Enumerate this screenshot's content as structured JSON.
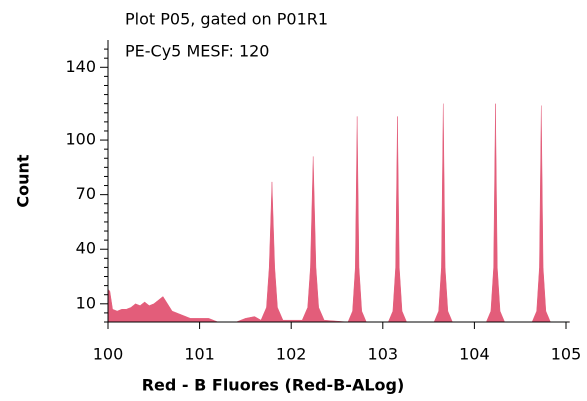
{
  "chart_data": {
    "type": "area",
    "title": "Plot P05, gated on P01R1",
    "subtitle": "PE-Cy5 MESF: 120",
    "x_label": "Red - B Fluores (Red-B-ALog)",
    "y_label": "Count",
    "color": "#e35d7a",
    "xlim": [
      0,
      5.04
    ],
    "ylim": [
      0,
      155
    ],
    "xticks": [
      {
        "value": 0,
        "label": "100"
      },
      {
        "value": 1,
        "label": "101"
      },
      {
        "value": 2,
        "label": "102"
      },
      {
        "value": 3,
        "label": "103"
      },
      {
        "value": 4,
        "label": "104"
      },
      {
        "value": 5,
        "label": "105"
      }
    ],
    "yticks": [
      10,
      40,
      70,
      100,
      140
    ],
    "yminorticks": [
      0,
      5,
      15,
      20,
      25,
      30,
      35,
      45,
      50,
      55,
      60,
      65,
      75,
      80,
      85,
      90,
      95,
      105,
      110,
      115,
      120,
      125,
      130,
      135,
      145,
      150
    ],
    "x": [
      0.0,
      0.02,
      0.05,
      0.1,
      0.15,
      0.2,
      0.25,
      0.3,
      0.35,
      0.4,
      0.45,
      0.5,
      0.55,
      0.6,
      0.65,
      0.7,
      0.8,
      0.9,
      1.0,
      1.1,
      1.2,
      1.4,
      1.5,
      1.6,
      1.67,
      1.73,
      1.76,
      1.79,
      1.82,
      1.85,
      1.91,
      2.12,
      2.18,
      2.21,
      2.24,
      2.27,
      2.3,
      2.36,
      2.62,
      2.67,
      2.7,
      2.72,
      2.74,
      2.77,
      2.82,
      3.06,
      3.11,
      3.14,
      3.16,
      3.18,
      3.21,
      3.26,
      3.56,
      3.61,
      3.64,
      3.66,
      3.68,
      3.71,
      3.76,
      4.13,
      4.18,
      4.21,
      4.23,
      4.25,
      4.28,
      4.33,
      4.63,
      4.68,
      4.71,
      4.73,
      4.75,
      4.78,
      4.83,
      5.04
    ],
    "values": [
      18,
      17,
      7,
      6,
      7,
      7,
      8,
      10,
      9,
      11,
      9,
      10,
      12,
      14,
      10,
      6,
      4,
      2,
      2,
      2,
      0,
      0,
      2,
      3,
      1,
      8,
      30,
      77,
      30,
      8,
      1,
      1,
      8,
      30,
      91,
      30,
      8,
      1,
      0,
      6,
      30,
      113,
      30,
      6,
      0,
      0,
      6,
      30,
      113,
      30,
      6,
      0,
      0,
      6,
      30,
      120,
      30,
      6,
      0,
      0,
      6,
      30,
      120,
      30,
      6,
      0,
      0,
      6,
      30,
      119,
      30,
      6,
      0,
      0
    ]
  }
}
